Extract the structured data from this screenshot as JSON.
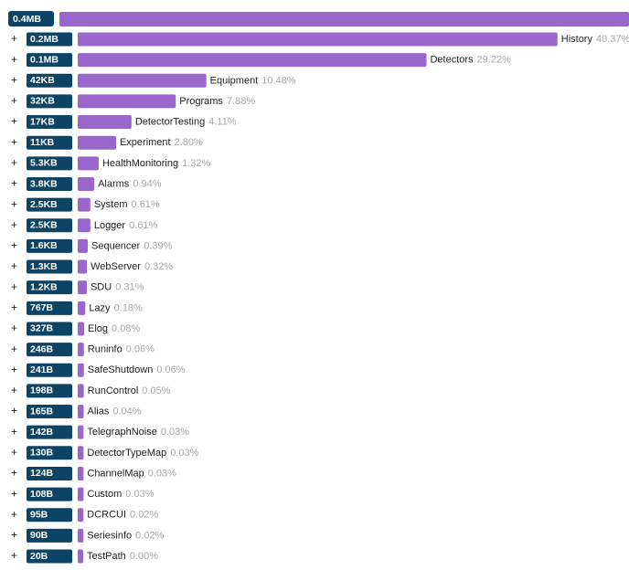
{
  "root": {
    "size": "0.4MB"
  },
  "items": [
    {
      "size": "0.2MB",
      "name": "History",
      "share": 40.37,
      "share_label": "40.37%"
    },
    {
      "size": "0.1MB",
      "name": "Detectors",
      "share": 29.22,
      "share_label": "29.22%"
    },
    {
      "size": "42KB",
      "name": "Equipment",
      "share": 10.48,
      "share_label": "10.48%"
    },
    {
      "size": "32KB",
      "name": "Programs",
      "share": 7.88,
      "share_label": "7.88%"
    },
    {
      "size": "17KB",
      "name": "DetectorTesting",
      "share": 4.11,
      "share_label": "4.11%"
    },
    {
      "size": "11KB",
      "name": "Experiment",
      "share": 2.8,
      "share_label": "2.80%"
    },
    {
      "size": "5.3KB",
      "name": "HealthMonitoring",
      "share": 1.32,
      "share_label": "1.32%"
    },
    {
      "size": "3.8KB",
      "name": "Alarms",
      "share": 0.94,
      "share_label": "0.94%"
    },
    {
      "size": "2.5KB",
      "name": "System",
      "share": 0.61,
      "share_label": "0.61%"
    },
    {
      "size": "2.5KB",
      "name": "Logger",
      "share": 0.61,
      "share_label": "0.61%"
    },
    {
      "size": "1.6KB",
      "name": "Sequencer",
      "share": 0.39,
      "share_label": "0.39%"
    },
    {
      "size": "1.3KB",
      "name": "WebServer",
      "share": 0.32,
      "share_label": "0.32%"
    },
    {
      "size": "1.2KB",
      "name": "SDU",
      "share": 0.31,
      "share_label": "0.31%"
    },
    {
      "size": "767B",
      "name": "Lazy",
      "share": 0.18,
      "share_label": "0.18%"
    },
    {
      "size": "327B",
      "name": "Elog",
      "share": 0.08,
      "share_label": "0.08%"
    },
    {
      "size": "246B",
      "name": "Runinfo",
      "share": 0.06,
      "share_label": "0.06%"
    },
    {
      "size": "241B",
      "name": "SafeShutdown",
      "share": 0.06,
      "share_label": "0.06%"
    },
    {
      "size": "198B",
      "name": "RunControl",
      "share": 0.05,
      "share_label": "0.05%"
    },
    {
      "size": "165B",
      "name": "Alias",
      "share": 0.04,
      "share_label": "0.04%"
    },
    {
      "size": "142B",
      "name": "TelegraphNoise",
      "share": 0.03,
      "share_label": "0.03%"
    },
    {
      "size": "130B",
      "name": "DetectorTypeMap",
      "share": 0.03,
      "share_label": "0.03%"
    },
    {
      "size": "124B",
      "name": "ChannelMap",
      "share": 0.03,
      "share_label": "0.03%"
    },
    {
      "size": "108B",
      "name": "Custom",
      "share": 0.03,
      "share_label": "0.03%"
    },
    {
      "size": "95B",
      "name": "DCRCUI",
      "share": 0.02,
      "share_label": "0.02%"
    },
    {
      "size": "90B",
      "name": "Seriesinfo",
      "share": 0.02,
      "share_label": "0.02%"
    },
    {
      "size": "20B",
      "name": "TestPath",
      "share": 0.0,
      "share_label": "0.00%"
    }
  ]
}
